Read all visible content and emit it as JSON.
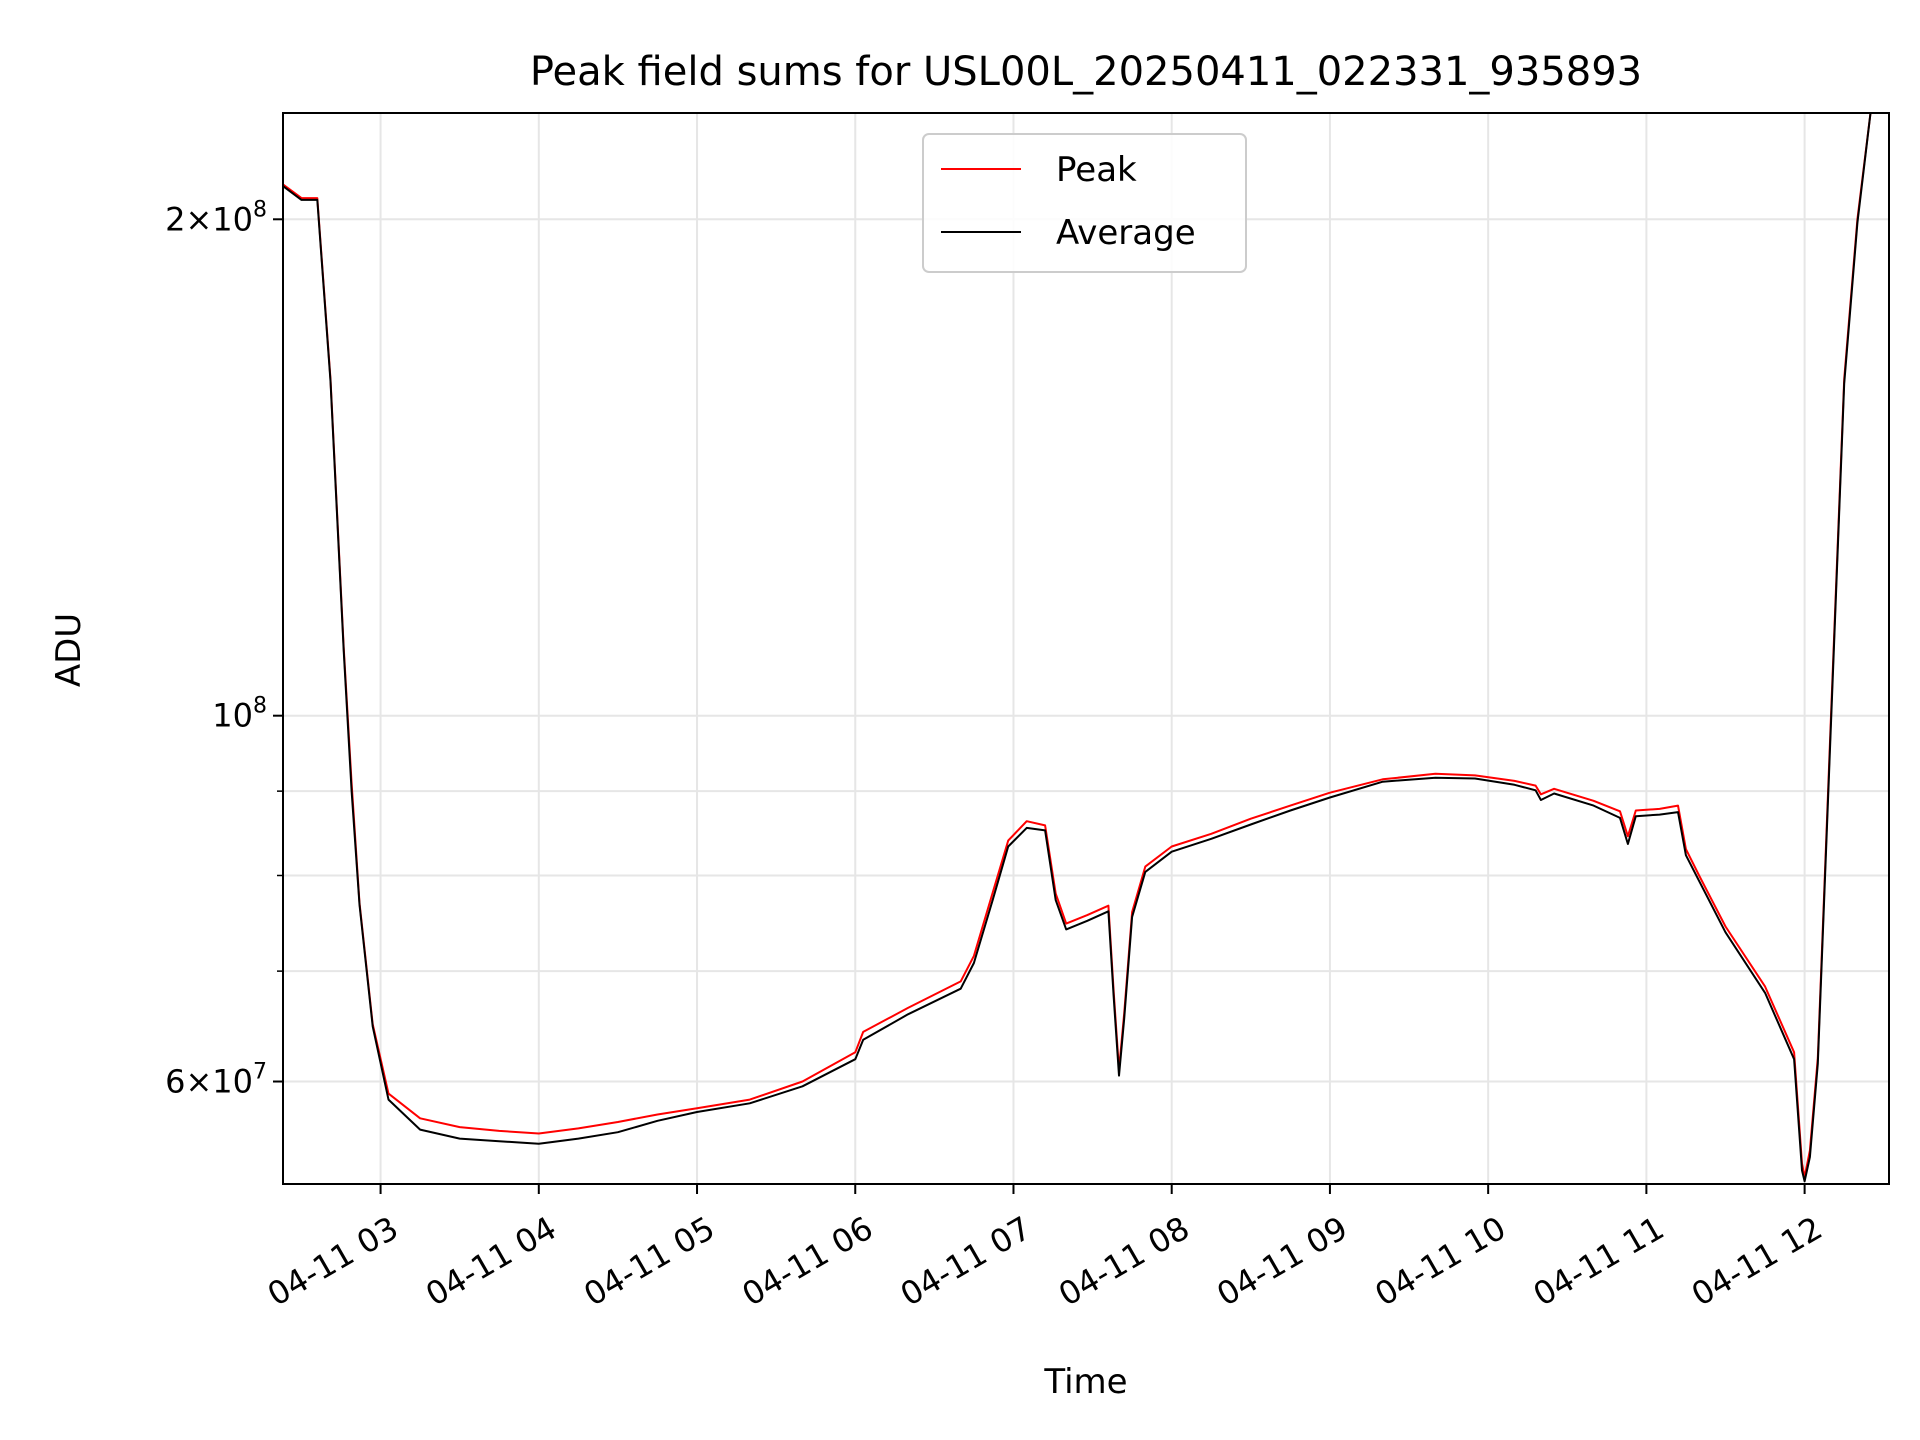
{
  "chart_data": {
    "type": "line",
    "title": "Peak field sums for USL00L_20250411_022331_935893",
    "xlabel": "Time",
    "ylabel": "ADU",
    "y_scale": "log",
    "grid": true,
    "legend_position": "top-center",
    "xlim": [
      "2025-04-11 02:23",
      "2025-04-11 12:32"
    ],
    "ylim": [
      52000000,
      232000000
    ],
    "x_ticks": [
      {
        "t": "2025-04-11 03:00",
        "label": "04-11 03"
      },
      {
        "t": "2025-04-11 04:00",
        "label": "04-11 04"
      },
      {
        "t": "2025-04-11 05:00",
        "label": "04-11 05"
      },
      {
        "t": "2025-04-11 06:00",
        "label": "04-11 06"
      },
      {
        "t": "2025-04-11 07:00",
        "label": "04-11 07"
      },
      {
        "t": "2025-04-11 08:00",
        "label": "04-11 08"
      },
      {
        "t": "2025-04-11 09:00",
        "label": "04-11 09"
      },
      {
        "t": "2025-04-11 10:00",
        "label": "04-11 10"
      },
      {
        "t": "2025-04-11 11:00",
        "label": "04-11 11"
      },
      {
        "t": "2025-04-11 12:00",
        "label": "04-11 12"
      }
    ],
    "y_major_ticks": [
      {
        "value": 60000000,
        "mantissa": "6",
        "exponent": "7"
      },
      {
        "value": 100000000,
        "mantissa": "",
        "exponent": "8"
      },
      {
        "value": 200000000,
        "mantissa": "2",
        "exponent": "8"
      }
    ],
    "y_minor_ticks": [
      70000000,
      80000000,
      90000000
    ],
    "series": [
      {
        "name": "Peak",
        "color": "#ff0000",
        "points": [
          [
            "2025-04-11 02:23",
            210000000
          ],
          [
            "2025-04-11 02:30",
            206000000
          ],
          [
            "2025-04-11 02:36",
            206000000
          ],
          [
            "2025-04-11 02:41",
            160000000
          ],
          [
            "2025-04-11 02:46",
            110000000
          ],
          [
            "2025-04-11 02:49",
            91000000
          ],
          [
            "2025-04-11 02:52",
            77000000
          ],
          [
            "2025-04-11 02:57",
            65000000
          ],
          [
            "2025-04-11 03:03",
            59000000
          ],
          [
            "2025-04-11 03:15",
            57000000
          ],
          [
            "2025-04-11 03:30",
            56300000
          ],
          [
            "2025-04-11 03:45",
            56000000
          ],
          [
            "2025-04-11 04:00",
            55800000
          ],
          [
            "2025-04-11 04:15",
            56200000
          ],
          [
            "2025-04-11 04:30",
            56700000
          ],
          [
            "2025-04-11 04:45",
            57300000
          ],
          [
            "2025-04-11 05:00",
            57800000
          ],
          [
            "2025-04-11 05:20",
            58500000
          ],
          [
            "2025-04-11 05:40",
            60000000
          ],
          [
            "2025-04-11 06:00",
            62500000
          ],
          [
            "2025-04-11 06:03",
            64300000
          ],
          [
            "2025-04-11 06:20",
            66500000
          ],
          [
            "2025-04-11 06:40",
            69000000
          ],
          [
            "2025-04-11 06:45",
            71500000
          ],
          [
            "2025-04-11 06:52",
            78000000
          ],
          [
            "2025-04-11 06:58",
            84000000
          ],
          [
            "2025-04-11 07:05",
            86300000
          ],
          [
            "2025-04-11 07:12",
            85800000
          ],
          [
            "2025-04-11 07:16",
            78000000
          ],
          [
            "2025-04-11 07:20",
            74800000
          ],
          [
            "2025-04-11 07:28",
            75700000
          ],
          [
            "2025-04-11 07:36",
            76700000
          ],
          [
            "2025-04-11 07:38",
            68000000
          ],
          [
            "2025-04-11 07:40",
            61000000
          ],
          [
            "2025-04-11 07:42",
            66000000
          ],
          [
            "2025-04-11 07:45",
            76000000
          ],
          [
            "2025-04-11 07:50",
            81000000
          ],
          [
            "2025-04-11 08:00",
            83300000
          ],
          [
            "2025-04-11 08:15",
            84800000
          ],
          [
            "2025-04-11 08:30",
            86600000
          ],
          [
            "2025-04-11 08:45",
            88200000
          ],
          [
            "2025-04-11 09:00",
            89800000
          ],
          [
            "2025-04-11 09:20",
            91500000
          ],
          [
            "2025-04-11 09:40",
            92200000
          ],
          [
            "2025-04-11 09:55",
            92000000
          ],
          [
            "2025-04-11 10:10",
            91300000
          ],
          [
            "2025-04-11 10:18",
            90700000
          ],
          [
            "2025-04-11 10:20",
            89600000
          ],
          [
            "2025-04-11 10:25",
            90300000
          ],
          [
            "2025-04-11 10:40",
            88800000
          ],
          [
            "2025-04-11 10:50",
            87500000
          ],
          [
            "2025-04-11 10:53",
            84500000
          ],
          [
            "2025-04-11 10:56",
            87600000
          ],
          [
            "2025-04-11 11:05",
            87800000
          ],
          [
            "2025-04-11 11:12",
            88200000
          ],
          [
            "2025-04-11 11:15",
            83000000
          ],
          [
            "2025-04-11 11:20",
            80000000
          ],
          [
            "2025-04-11 11:30",
            74500000
          ],
          [
            "2025-04-11 11:45",
            68500000
          ],
          [
            "2025-04-11 11:56",
            62500000
          ],
          [
            "2025-04-11 11:59",
            53500000
          ],
          [
            "2025-04-11 12:00",
            52500000
          ],
          [
            "2025-04-11 12:02",
            54500000
          ],
          [
            "2025-04-11 12:05",
            62000000
          ],
          [
            "2025-04-11 12:10",
            100000000
          ],
          [
            "2025-04-11 12:15",
            160000000
          ],
          [
            "2025-04-11 12:20",
            200000000
          ],
          [
            "2025-04-11 12:25",
            232000000
          ],
          [
            "2025-04-11 12:32",
            232000000
          ]
        ]
      },
      {
        "name": "Average",
        "color": "#000000",
        "points": [
          [
            "2025-04-11 02:23",
            209500000
          ],
          [
            "2025-04-11 02:30",
            205500000
          ],
          [
            "2025-04-11 02:36",
            205500000
          ],
          [
            "2025-04-11 02:41",
            159500000
          ],
          [
            "2025-04-11 02:46",
            109500000
          ],
          [
            "2025-04-11 02:49",
            90000000
          ],
          [
            "2025-04-11 02:52",
            76800000
          ],
          [
            "2025-04-11 02:57",
            64800000
          ],
          [
            "2025-04-11 03:03",
            58500000
          ],
          [
            "2025-04-11 03:15",
            56100000
          ],
          [
            "2025-04-11 03:30",
            55400000
          ],
          [
            "2025-04-11 03:45",
            55200000
          ],
          [
            "2025-04-11 04:00",
            55000000
          ],
          [
            "2025-04-11 04:15",
            55400000
          ],
          [
            "2025-04-11 04:30",
            55900000
          ],
          [
            "2025-04-11 04:45",
            56800000
          ],
          [
            "2025-04-11 05:00",
            57500000
          ],
          [
            "2025-04-11 05:20",
            58200000
          ],
          [
            "2025-04-11 05:40",
            59600000
          ],
          [
            "2025-04-11 06:00",
            61900000
          ],
          [
            "2025-04-11 06:03",
            63600000
          ],
          [
            "2025-04-11 06:20",
            65900000
          ],
          [
            "2025-04-11 06:40",
            68300000
          ],
          [
            "2025-04-11 06:45",
            70800000
          ],
          [
            "2025-04-11 06:52",
            77200000
          ],
          [
            "2025-04-11 06:58",
            83300000
          ],
          [
            "2025-04-11 07:05",
            85500000
          ],
          [
            "2025-04-11 07:12",
            85200000
          ],
          [
            "2025-04-11 07:16",
            77300000
          ],
          [
            "2025-04-11 07:20",
            74200000
          ],
          [
            "2025-04-11 07:28",
            75100000
          ],
          [
            "2025-04-11 07:36",
            76100000
          ],
          [
            "2025-04-11 07:38",
            67500000
          ],
          [
            "2025-04-11 07:40",
            60500000
          ],
          [
            "2025-04-11 07:42",
            65500000
          ],
          [
            "2025-04-11 07:45",
            75500000
          ],
          [
            "2025-04-11 07:50",
            80400000
          ],
          [
            "2025-04-11 08:00",
            82700000
          ],
          [
            "2025-04-11 08:15",
            84200000
          ],
          [
            "2025-04-11 08:30",
            85900000
          ],
          [
            "2025-04-11 08:45",
            87600000
          ],
          [
            "2025-04-11 09:00",
            89200000
          ],
          [
            "2025-04-11 09:20",
            91200000
          ],
          [
            "2025-04-11 09:40",
            91700000
          ],
          [
            "2025-04-11 09:55",
            91600000
          ],
          [
            "2025-04-11 10:10",
            90800000
          ],
          [
            "2025-04-11 10:18",
            90100000
          ],
          [
            "2025-04-11 10:20",
            88900000
          ],
          [
            "2025-04-11 10:25",
            89700000
          ],
          [
            "2025-04-11 10:40",
            88200000
          ],
          [
            "2025-04-11 10:50",
            86700000
          ],
          [
            "2025-04-11 10:53",
            83600000
          ],
          [
            "2025-04-11 10:56",
            86900000
          ],
          [
            "2025-04-11 11:05",
            87100000
          ],
          [
            "2025-04-11 11:12",
            87400000
          ],
          [
            "2025-04-11 11:15",
            82300000
          ],
          [
            "2025-04-11 11:20",
            79400000
          ],
          [
            "2025-04-11 11:30",
            73900000
          ],
          [
            "2025-04-11 11:45",
            67900000
          ],
          [
            "2025-04-11 11:56",
            61900000
          ],
          [
            "2025-04-11 11:59",
            53000000
          ],
          [
            "2025-04-11 12:00",
            52200000
          ],
          [
            "2025-04-11 12:02",
            54000000
          ],
          [
            "2025-04-11 12:05",
            61500000
          ],
          [
            "2025-04-11 12:10",
            99000000
          ],
          [
            "2025-04-11 12:15",
            159000000
          ],
          [
            "2025-04-11 12:20",
            199000000
          ],
          [
            "2025-04-11 12:25",
            232000000
          ],
          [
            "2025-04-11 12:32",
            232000000
          ]
        ]
      }
    ]
  }
}
